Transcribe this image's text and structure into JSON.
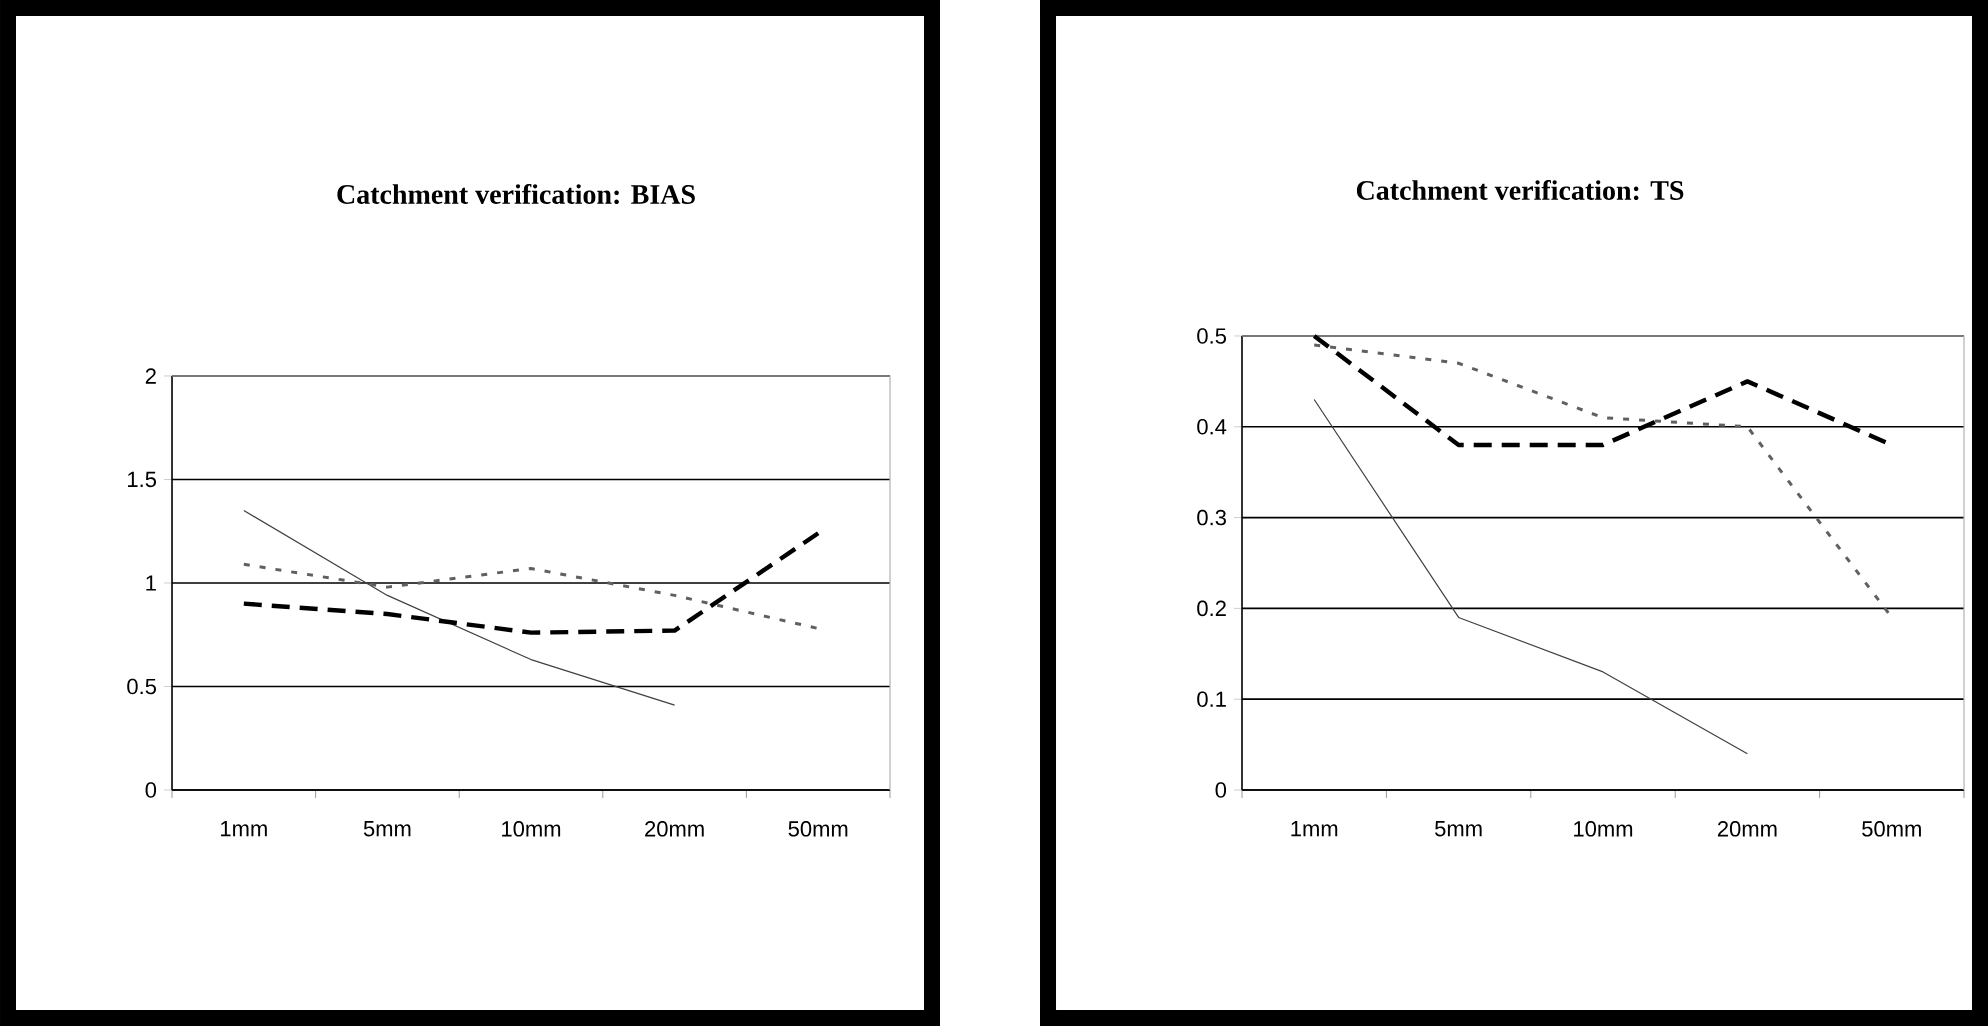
{
  "chart_data": [
    {
      "type": "line",
      "title": "Catchment verification: BIAS",
      "categories": [
        "1mm",
        "5mm",
        "10mm",
        "20mm",
        "50mm"
      ],
      "series": [
        {
          "color": "#404040",
          "line_style": "solid",
          "values": [
            1.35,
            0.94,
            0.63,
            0.41,
            null
          ]
        },
        {
          "color": "#000000",
          "line_style": "dashed",
          "values": [
            0.9,
            0.85,
            0.76,
            0.77,
            1.24
          ]
        },
        {
          "color": "#606060",
          "line_style": "dotted",
          "values": [
            1.09,
            0.98,
            1.07,
            0.94,
            0.78
          ]
        }
      ],
      "ylim": [
        0,
        2
      ],
      "yticks": [
        0,
        0.5,
        1,
        1.5,
        2
      ],
      "grid": "y"
    },
    {
      "type": "line",
      "title": "Catchment verification: TS",
      "categories": [
        "1mm",
        "5mm",
        "10mm",
        "20mm",
        "50mm"
      ],
      "series": [
        {
          "color": "#404040",
          "line_style": "solid",
          "values": [
            0.43,
            0.19,
            0.13,
            0.04,
            null
          ]
        },
        {
          "color": "#000000",
          "line_style": "dashed",
          "values": [
            0.5,
            0.38,
            0.38,
            0.45,
            0.38
          ]
        },
        {
          "color": "#606060",
          "line_style": "dotted",
          "values": [
            0.49,
            0.47,
            0.41,
            0.4,
            0.19
          ]
        }
      ],
      "ylim": [
        0,
        0.5
      ],
      "yticks": [
        0,
        0.1,
        0.2,
        0.3,
        0.4,
        0.5
      ],
      "grid": "y"
    }
  ]
}
